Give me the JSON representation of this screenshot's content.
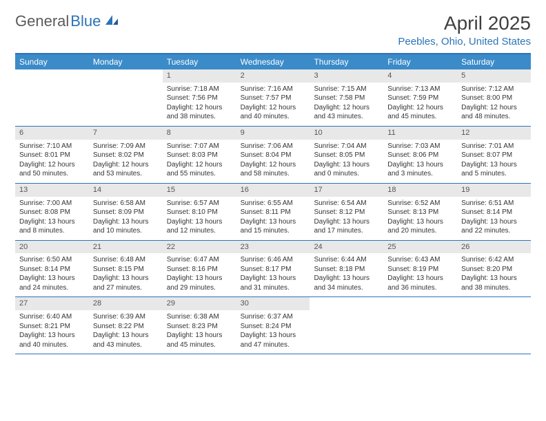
{
  "logo": {
    "part1": "General",
    "part2": "Blue"
  },
  "title": "April 2025",
  "location": "Peebles, Ohio, United States",
  "weekdays": [
    "Sunday",
    "Monday",
    "Tuesday",
    "Wednesday",
    "Thursday",
    "Friday",
    "Saturday"
  ],
  "colors": {
    "brand_blue": "#2c73b8",
    "header_bar": "#3b8bc9",
    "daynum_bg": "#e8e8e8",
    "text": "#333333",
    "title_text": "#404040"
  },
  "weeks": [
    [
      null,
      null,
      {
        "n": "1",
        "sr": "Sunrise: 7:18 AM",
        "ss": "Sunset: 7:56 PM",
        "d1": "Daylight: 12 hours",
        "d2": "and 38 minutes."
      },
      {
        "n": "2",
        "sr": "Sunrise: 7:16 AM",
        "ss": "Sunset: 7:57 PM",
        "d1": "Daylight: 12 hours",
        "d2": "and 40 minutes."
      },
      {
        "n": "3",
        "sr": "Sunrise: 7:15 AM",
        "ss": "Sunset: 7:58 PM",
        "d1": "Daylight: 12 hours",
        "d2": "and 43 minutes."
      },
      {
        "n": "4",
        "sr": "Sunrise: 7:13 AM",
        "ss": "Sunset: 7:59 PM",
        "d1": "Daylight: 12 hours",
        "d2": "and 45 minutes."
      },
      {
        "n": "5",
        "sr": "Sunrise: 7:12 AM",
        "ss": "Sunset: 8:00 PM",
        "d1": "Daylight: 12 hours",
        "d2": "and 48 minutes."
      }
    ],
    [
      {
        "n": "6",
        "sr": "Sunrise: 7:10 AM",
        "ss": "Sunset: 8:01 PM",
        "d1": "Daylight: 12 hours",
        "d2": "and 50 minutes."
      },
      {
        "n": "7",
        "sr": "Sunrise: 7:09 AM",
        "ss": "Sunset: 8:02 PM",
        "d1": "Daylight: 12 hours",
        "d2": "and 53 minutes."
      },
      {
        "n": "8",
        "sr": "Sunrise: 7:07 AM",
        "ss": "Sunset: 8:03 PM",
        "d1": "Daylight: 12 hours",
        "d2": "and 55 minutes."
      },
      {
        "n": "9",
        "sr": "Sunrise: 7:06 AM",
        "ss": "Sunset: 8:04 PM",
        "d1": "Daylight: 12 hours",
        "d2": "and 58 minutes."
      },
      {
        "n": "10",
        "sr": "Sunrise: 7:04 AM",
        "ss": "Sunset: 8:05 PM",
        "d1": "Daylight: 13 hours",
        "d2": "and 0 minutes."
      },
      {
        "n": "11",
        "sr": "Sunrise: 7:03 AM",
        "ss": "Sunset: 8:06 PM",
        "d1": "Daylight: 13 hours",
        "d2": "and 3 minutes."
      },
      {
        "n": "12",
        "sr": "Sunrise: 7:01 AM",
        "ss": "Sunset: 8:07 PM",
        "d1": "Daylight: 13 hours",
        "d2": "and 5 minutes."
      }
    ],
    [
      {
        "n": "13",
        "sr": "Sunrise: 7:00 AM",
        "ss": "Sunset: 8:08 PM",
        "d1": "Daylight: 13 hours",
        "d2": "and 8 minutes."
      },
      {
        "n": "14",
        "sr": "Sunrise: 6:58 AM",
        "ss": "Sunset: 8:09 PM",
        "d1": "Daylight: 13 hours",
        "d2": "and 10 minutes."
      },
      {
        "n": "15",
        "sr": "Sunrise: 6:57 AM",
        "ss": "Sunset: 8:10 PM",
        "d1": "Daylight: 13 hours",
        "d2": "and 12 minutes."
      },
      {
        "n": "16",
        "sr": "Sunrise: 6:55 AM",
        "ss": "Sunset: 8:11 PM",
        "d1": "Daylight: 13 hours",
        "d2": "and 15 minutes."
      },
      {
        "n": "17",
        "sr": "Sunrise: 6:54 AM",
        "ss": "Sunset: 8:12 PM",
        "d1": "Daylight: 13 hours",
        "d2": "and 17 minutes."
      },
      {
        "n": "18",
        "sr": "Sunrise: 6:52 AM",
        "ss": "Sunset: 8:13 PM",
        "d1": "Daylight: 13 hours",
        "d2": "and 20 minutes."
      },
      {
        "n": "19",
        "sr": "Sunrise: 6:51 AM",
        "ss": "Sunset: 8:14 PM",
        "d1": "Daylight: 13 hours",
        "d2": "and 22 minutes."
      }
    ],
    [
      {
        "n": "20",
        "sr": "Sunrise: 6:50 AM",
        "ss": "Sunset: 8:14 PM",
        "d1": "Daylight: 13 hours",
        "d2": "and 24 minutes."
      },
      {
        "n": "21",
        "sr": "Sunrise: 6:48 AM",
        "ss": "Sunset: 8:15 PM",
        "d1": "Daylight: 13 hours",
        "d2": "and 27 minutes."
      },
      {
        "n": "22",
        "sr": "Sunrise: 6:47 AM",
        "ss": "Sunset: 8:16 PM",
        "d1": "Daylight: 13 hours",
        "d2": "and 29 minutes."
      },
      {
        "n": "23",
        "sr": "Sunrise: 6:46 AM",
        "ss": "Sunset: 8:17 PM",
        "d1": "Daylight: 13 hours",
        "d2": "and 31 minutes."
      },
      {
        "n": "24",
        "sr": "Sunrise: 6:44 AM",
        "ss": "Sunset: 8:18 PM",
        "d1": "Daylight: 13 hours",
        "d2": "and 34 minutes."
      },
      {
        "n": "25",
        "sr": "Sunrise: 6:43 AM",
        "ss": "Sunset: 8:19 PM",
        "d1": "Daylight: 13 hours",
        "d2": "and 36 minutes."
      },
      {
        "n": "26",
        "sr": "Sunrise: 6:42 AM",
        "ss": "Sunset: 8:20 PM",
        "d1": "Daylight: 13 hours",
        "d2": "and 38 minutes."
      }
    ],
    [
      {
        "n": "27",
        "sr": "Sunrise: 6:40 AM",
        "ss": "Sunset: 8:21 PM",
        "d1": "Daylight: 13 hours",
        "d2": "and 40 minutes."
      },
      {
        "n": "28",
        "sr": "Sunrise: 6:39 AM",
        "ss": "Sunset: 8:22 PM",
        "d1": "Daylight: 13 hours",
        "d2": "and 43 minutes."
      },
      {
        "n": "29",
        "sr": "Sunrise: 6:38 AM",
        "ss": "Sunset: 8:23 PM",
        "d1": "Daylight: 13 hours",
        "d2": "and 45 minutes."
      },
      {
        "n": "30",
        "sr": "Sunrise: 6:37 AM",
        "ss": "Sunset: 8:24 PM",
        "d1": "Daylight: 13 hours",
        "d2": "and 47 minutes."
      },
      null,
      null,
      null
    ]
  ]
}
